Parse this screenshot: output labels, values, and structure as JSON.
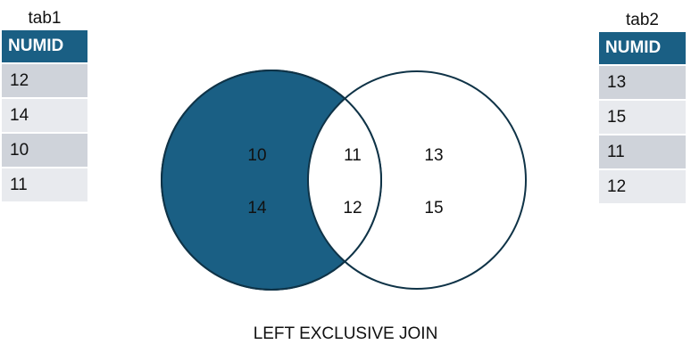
{
  "colors": {
    "accent": "#1a5f84",
    "outline": "#0f3347"
  },
  "tables": [
    {
      "caption": "tab1",
      "header": "NUMID",
      "rows": [
        "12",
        "14",
        "10",
        "11"
      ]
    },
    {
      "caption": "tab2",
      "header": "NUMID",
      "rows": [
        "13",
        "15",
        "11",
        "12"
      ]
    }
  ],
  "venn": {
    "left_only": [
      "10",
      "14"
    ],
    "intersection": [
      "11",
      "12"
    ],
    "right_only": [
      "13",
      "15"
    ]
  },
  "title": "LEFT EXCLUSIVE JOIN"
}
